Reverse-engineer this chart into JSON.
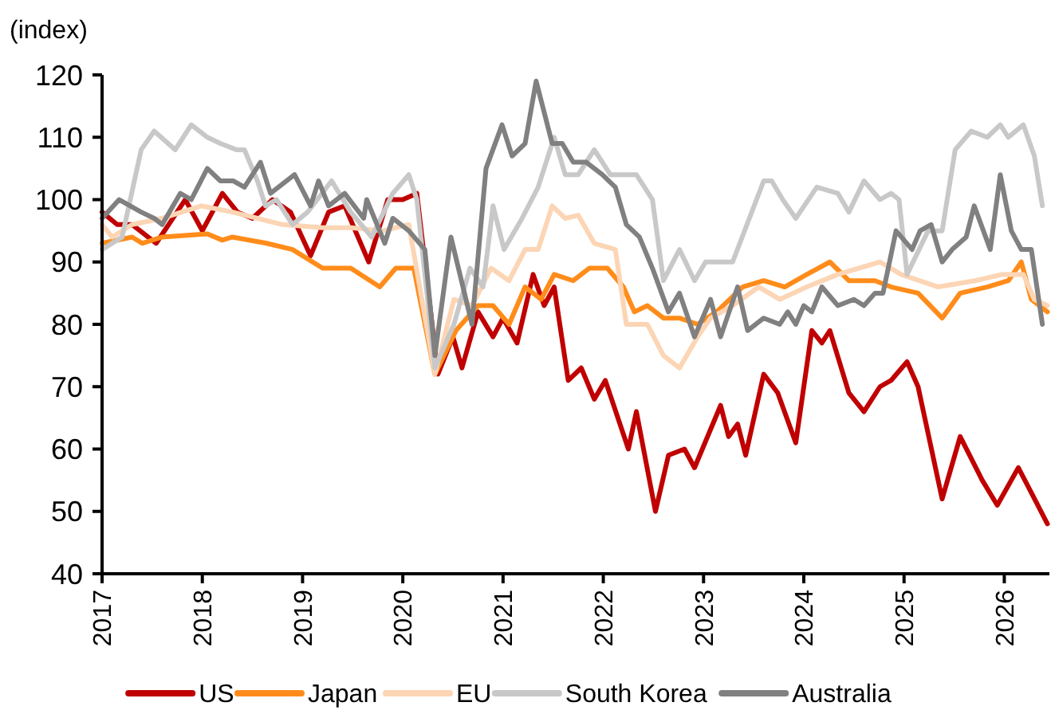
{
  "chart_data": {
    "type": "line",
    "ylabel": "(index)",
    "xlim": [
      2017,
      2026.45
    ],
    "xticks": [
      2017,
      2018,
      2019,
      2020,
      2021,
      2022,
      2023,
      2024,
      2025,
      2026
    ],
    "ylim": [
      40,
      120
    ],
    "yticks": [
      40,
      50,
      60,
      70,
      80,
      90,
      100,
      110,
      120
    ],
    "grid": false,
    "legend": "bottom",
    "marker": "none",
    "line_style": "solid",
    "series": [
      {
        "name": "US",
        "color": "#c00000",
        "x": [
          2017,
          2017.15,
          2017.3,
          2017.54,
          2017.83,
          2018,
          2018.2,
          2018.35,
          2018.5,
          2018.7,
          2018.88,
          2019.08,
          2019.26,
          2019.42,
          2019.66,
          2019.85,
          2020.0,
          2020.14,
          2020.35,
          2020.5,
          2020.59,
          2020.75,
          2020.9,
          2021,
          2021.14,
          2021.3,
          2021.41,
          2021.51,
          2021.65,
          2021.78,
          2021.91,
          2022.02,
          2022.25,
          2022.33,
          2022.52,
          2022.65,
          2022.81,
          2022.91,
          2023.17,
          2023.25,
          2023.34,
          2023.42,
          2023.6,
          2023.74,
          2023.92,
          2024.08,
          2024.18,
          2024.26,
          2024.45,
          2024.6,
          2024.76,
          2024.87,
          2025.03,
          2025.14,
          2025.38,
          2025.56,
          2025.78,
          2025.93,
          2026.14,
          2026.27,
          2026.43
        ],
        "values": [
          98,
          96,
          96,
          93,
          100,
          95,
          101,
          98,
          97,
          100,
          98,
          91,
          98,
          99,
          90,
          100,
          100,
          101,
          72,
          78,
          73,
          82,
          78,
          81,
          77,
          88,
          83,
          86,
          71,
          73,
          68,
          71,
          60,
          66,
          50,
          59,
          60,
          57,
          67,
          62,
          64,
          59,
          72,
          69,
          61,
          79,
          77,
          79,
          69,
          66,
          70,
          71,
          74,
          70,
          52,
          62,
          55,
          51,
          57,
          53,
          48
        ]
      },
      {
        "name": "Japan",
        "color": "#ff8c1a",
        "x": [
          2017,
          2017.3,
          2017.4,
          2017.6,
          2018.05,
          2018.2,
          2018.3,
          2018.64,
          2018.9,
          2019.2,
          2019.48,
          2019.77,
          2019.93,
          2020.11,
          2020.32,
          2020.53,
          2020.75,
          2020.9,
          2021.06,
          2021.22,
          2021.38,
          2021.51,
          2021.7,
          2021.86,
          2022.04,
          2022.2,
          2022.31,
          2022.44,
          2022.6,
          2022.76,
          2022.94,
          2023.13,
          2023.39,
          2023.6,
          2023.81,
          2024.03,
          2024.26,
          2024.45,
          2024.71,
          2024.87,
          2025.14,
          2025.38,
          2025.56,
          2025.83,
          2026.04,
          2026.17,
          2026.27,
          2026.43
        ],
        "values": [
          93,
          94,
          93,
          94,
          94.5,
          93.5,
          94,
          93,
          92,
          89,
          89,
          86,
          89,
          89,
          72,
          79,
          83,
          83,
          80,
          86,
          84,
          88,
          87,
          89,
          89,
          86,
          82,
          83,
          81,
          81,
          80,
          82,
          86,
          87,
          86,
          88,
          90,
          87,
          87,
          86,
          85,
          81,
          85,
          86,
          87,
          90,
          84,
          82
        ]
      },
      {
        "name": "EU",
        "color": "#fcd5b5",
        "x": [
          2017,
          2017.1,
          2017.3,
          2017.6,
          2017.99,
          2018.3,
          2018.55,
          2018.8,
          2019.2,
          2019.48,
          2019.8,
          2020.06,
          2020.32,
          2020.51,
          2020.69,
          2020.88,
          2021.06,
          2021.22,
          2021.35,
          2021.49,
          2021.62,
          2021.75,
          2021.91,
          2022.12,
          2022.23,
          2022.44,
          2022.6,
          2022.76,
          2022.94,
          2023.07,
          2023.29,
          2023.55,
          2023.76,
          2024.03,
          2024.34,
          2024.76,
          2024.97,
          2025.34,
          2025.71,
          2025.98,
          2026.19,
          2026.3,
          2026.43
        ],
        "values": [
          96,
          94,
          96,
          97,
          99,
          98,
          97,
          96,
          95.5,
          95.5,
          95,
          96,
          72,
          84,
          83,
          89,
          87,
          92,
          92,
          99,
          97,
          97.5,
          93,
          92,
          80,
          80,
          75,
          73,
          78,
          81,
          83,
          86,
          84,
          86,
          88,
          90,
          88,
          86,
          87,
          88,
          88,
          84,
          83
        ]
      },
      {
        "name": "South Korea",
        "color": "#c8c8c8",
        "x": [
          2017,
          2017.2,
          2017.39,
          2017.52,
          2017.73,
          2017.89,
          2018.05,
          2018.18,
          2018.34,
          2018.42,
          2018.55,
          2018.63,
          2018.74,
          2018.9,
          2019.05,
          2019.29,
          2019.48,
          2019.69,
          2019.9,
          2020.06,
          2020.14,
          2020.32,
          2020.51,
          2020.67,
          2020.8,
          2020.9,
          2021.01,
          2021.19,
          2021.35,
          2021.51,
          2021.62,
          2021.75,
          2021.91,
          2022.07,
          2022.33,
          2022.49,
          2022.6,
          2022.76,
          2022.91,
          2023.02,
          2023.29,
          2023.6,
          2023.68,
          2023.79,
          2023.92,
          2024.13,
          2024.34,
          2024.45,
          2024.6,
          2024.76,
          2024.87,
          2024.95,
          2025.03,
          2025.24,
          2025.38,
          2025.51,
          2025.67,
          2025.83,
          2025.96,
          2026.04,
          2026.19,
          2026.3,
          2026.38
        ],
        "values": [
          92,
          94,
          108,
          111,
          108,
          112,
          110,
          109,
          108,
          108,
          103,
          99,
          100,
          96,
          98,
          103,
          98,
          94,
          101,
          104,
          100,
          73,
          80,
          89,
          86,
          99,
          92,
          97,
          102,
          110,
          104,
          104,
          108,
          104,
          104,
          100,
          87,
          92,
          87,
          90,
          90,
          103,
          103,
          100,
          97,
          102,
          101,
          98,
          103,
          100,
          101,
          100,
          88,
          95,
          95,
          108,
          111,
          110,
          112,
          110,
          112,
          107,
          99
        ]
      },
      {
        "name": "Australia",
        "color": "#808080",
        "x": [
          2017,
          2017.17,
          2017.39,
          2017.52,
          2017.6,
          2017.78,
          2017.89,
          2018.05,
          2018.18,
          2018.31,
          2018.42,
          2018.58,
          2018.68,
          2018.92,
          2019.08,
          2019.16,
          2019.26,
          2019.42,
          2019.61,
          2019.64,
          2019.82,
          2019.9,
          2020.06,
          2020.22,
          2020.32,
          2020.48,
          2020.69,
          2020.83,
          2020.99,
          2021.09,
          2021.22,
          2021.33,
          2021.49,
          2021.59,
          2021.7,
          2021.83,
          2021.99,
          2022.12,
          2022.23,
          2022.36,
          2022.49,
          2022.65,
          2022.76,
          2022.91,
          2023.07,
          2023.17,
          2023.34,
          2023.44,
          2023.6,
          2023.76,
          2023.84,
          2023.92,
          2024,
          2024.08,
          2024.18,
          2024.34,
          2024.5,
          2024.6,
          2024.71,
          2024.79,
          2024.92,
          2025.08,
          2025.16,
          2025.27,
          2025.38,
          2025.48,
          2025.62,
          2025.7,
          2025.86,
          2025.96,
          2026.07,
          2026.17,
          2026.27,
          2026.38
        ],
        "values": [
          97,
          100,
          98,
          97,
          96,
          101,
          100,
          105,
          103,
          103,
          102,
          106,
          101,
          104,
          99,
          103,
          99,
          101,
          97,
          100,
          93,
          97,
          95,
          92,
          75,
          94,
          80,
          105,
          112,
          107,
          109,
          119,
          109,
          109,
          106,
          106,
          104,
          102,
          96,
          94,
          89,
          82,
          85,
          78,
          84,
          78,
          86,
          79,
          81,
          80,
          82,
          80,
          83,
          82,
          86,
          83,
          84,
          83,
          85,
          85,
          95,
          92,
          95,
          96,
          90,
          92,
          94,
          99,
          92,
          104,
          95,
          92,
          92,
          80
        ]
      }
    ]
  }
}
